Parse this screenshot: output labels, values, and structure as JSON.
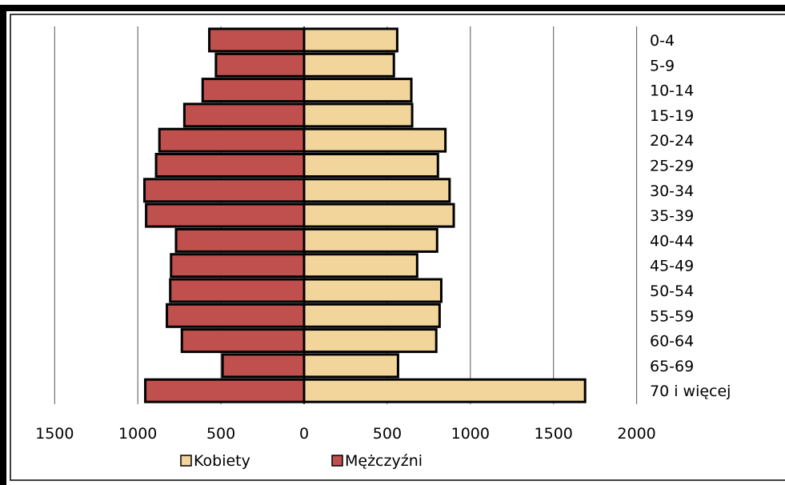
{
  "chart_data": {
    "type": "bar",
    "orientation": "horizontal",
    "layout": "population-pyramid",
    "categories": [
      "0-4",
      "5-9",
      "10-14",
      "15-19",
      "20-24",
      "25-29",
      "30-34",
      "35-39",
      "40-44",
      "45-49",
      "50-54",
      "55-59",
      "60-64",
      "65-69",
      "70 i więcej"
    ],
    "series": [
      {
        "name": "Kobiety",
        "color": "#f2d59b",
        "side": "right",
        "values": [
          560,
          540,
          645,
          650,
          850,
          805,
          875,
          900,
          800,
          680,
          825,
          815,
          795,
          565,
          1690
        ]
      },
      {
        "name": "Mężczyźni",
        "color": "#c0504d",
        "side": "left",
        "values": [
          570,
          530,
          610,
          720,
          870,
          890,
          960,
          950,
          770,
          800,
          805,
          825,
          735,
          490,
          955
        ]
      }
    ],
    "xlim": [
      -1500,
      2000
    ],
    "xticks": [
      -1500,
      -1000,
      -500,
      0,
      500,
      1000,
      1500,
      2000
    ],
    "xtick_labels": [
      "1500",
      "1000",
      "500",
      "0",
      "500",
      "1000",
      "1500",
      "2000"
    ],
    "grid": "vertical",
    "legend": "bottom"
  },
  "colors": {
    "female": "#f2d59b",
    "male": "#c0504d",
    "outline": "#000000",
    "grid": "#555555"
  }
}
